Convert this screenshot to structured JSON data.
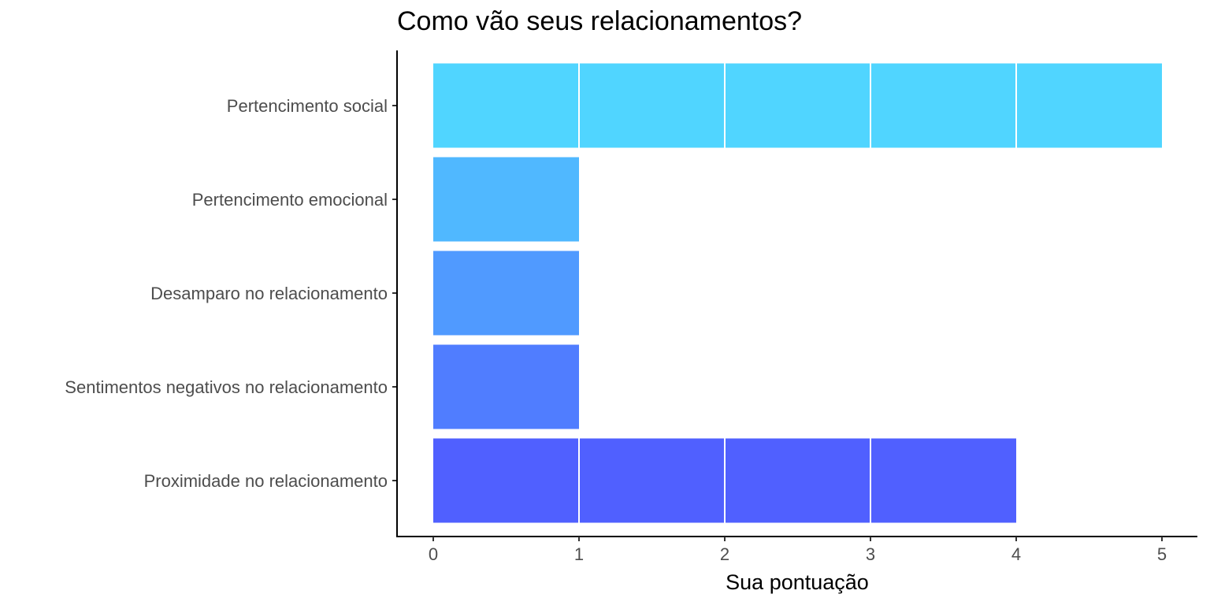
{
  "chart_data": {
    "type": "bar",
    "orientation": "horizontal",
    "title": "Como vão seus relacionamentos?",
    "xlabel": "Sua pontuação",
    "ylabel": "",
    "xlim": [
      0,
      5
    ],
    "x_ticks": [
      "0",
      "1",
      "2",
      "3",
      "4",
      "5"
    ],
    "categories": [
      "Pertencimento social",
      "Pertencimento emocional",
      "Desamparo no relacionamento",
      "Sentimentos negativos no relacionamento",
      "Proximidade no relacionamento"
    ],
    "values": [
      5,
      1,
      1,
      1,
      4
    ],
    "bar_colors": [
      "#50d5ff",
      "#50b8ff",
      "#509aff",
      "#507dff",
      "#5060ff"
    ],
    "bar_segment_divider_color": "#ffffff",
    "grid": false,
    "legend": "none"
  }
}
